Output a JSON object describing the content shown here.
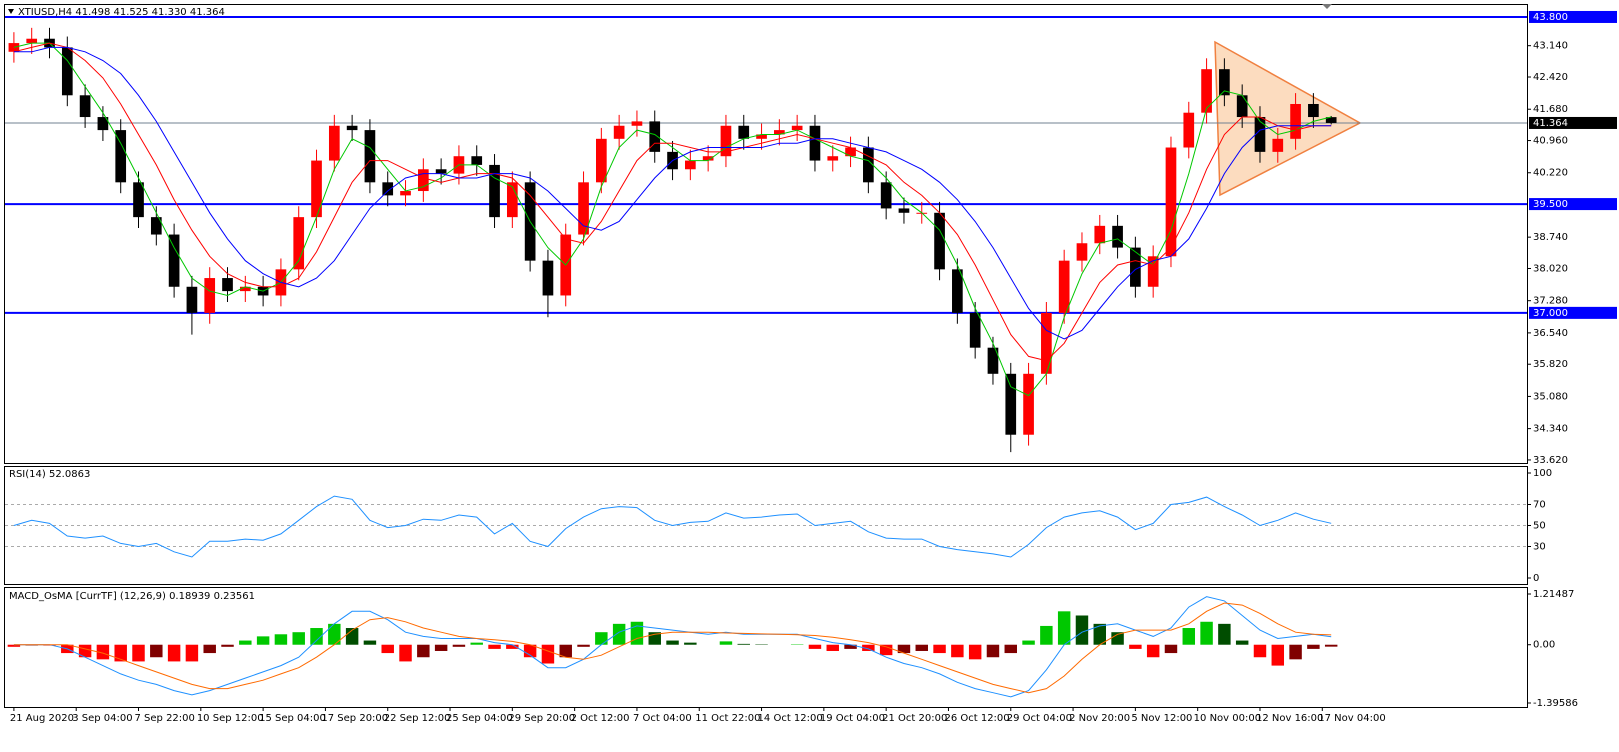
{
  "chart_data": [
    {
      "type": "candlestick",
      "title": "XTIUSD,H4  41.498 41.525 41.330 41.364",
      "xlim": [
        -0.5,
        85
      ],
      "open": [
        43.0,
        43.2,
        43.3,
        43.1,
        42.0,
        41.5,
        41.2,
        40.0,
        39.2,
        38.8,
        37.6,
        37.0,
        37.8,
        37.5,
        37.6,
        37.4,
        38.0,
        39.2,
        40.5,
        41.3,
        41.2,
        40.0,
        39.7,
        39.8,
        40.3,
        40.2,
        40.6,
        40.4,
        39.2,
        40.0,
        38.2,
        37.4,
        38.8,
        40.0,
        41.0,
        41.3,
        41.4,
        40.7,
        40.3,
        40.5,
        40.6,
        41.3,
        41.0,
        41.1,
        41.2,
        41.3,
        40.5,
        40.6,
        40.8,
        40.0,
        39.4,
        39.3,
        39.3,
        38.0,
        37.0,
        36.2,
        35.6,
        34.2,
        35.6,
        37.0,
        38.2,
        38.6,
        39.0,
        38.5,
        37.6,
        38.3,
        40.8,
        41.6,
        42.6,
        42.0,
        41.5,
        40.7,
        41.0,
        41.8,
        41.498
      ],
      "high": [
        43.45,
        43.55,
        43.55,
        43.35,
        42.25,
        41.75,
        41.45,
        40.25,
        39.45,
        39.05,
        37.85,
        38.05,
        38.05,
        37.85,
        37.85,
        38.25,
        39.45,
        40.75,
        41.55,
        41.55,
        41.45,
        40.25,
        40.05,
        40.55,
        40.55,
        40.85,
        40.85,
        40.65,
        40.25,
        40.25,
        38.45,
        39.05,
        40.25,
        41.25,
        41.55,
        41.65,
        41.65,
        40.95,
        40.75,
        40.85,
        41.55,
        41.55,
        41.35,
        41.45,
        41.55,
        41.55,
        40.85,
        41.05,
        41.05,
        40.25,
        39.65,
        39.55,
        39.55,
        38.25,
        37.25,
        36.45,
        35.85,
        35.85,
        37.25,
        38.45,
        38.85,
        39.25,
        39.25,
        38.75,
        38.55,
        41.05,
        41.85,
        42.85,
        42.85,
        42.25,
        41.75,
        41.25,
        42.05,
        42.05,
        41.525
      ],
      "low": [
        42.75,
        42.95,
        42.85,
        41.75,
        41.25,
        40.95,
        39.75,
        38.95,
        38.55,
        37.35,
        36.5,
        36.75,
        37.25,
        37.25,
        37.15,
        37.15,
        37.75,
        38.95,
        40.25,
        40.95,
        39.75,
        39.45,
        39.45,
        39.55,
        39.95,
        39.95,
        40.15,
        38.95,
        38.95,
        37.95,
        36.9,
        37.15,
        38.55,
        39.75,
        40.75,
        41.05,
        40.45,
        40.05,
        40.05,
        40.25,
        40.35,
        40.75,
        40.75,
        40.85,
        40.95,
        40.25,
        40.25,
        40.35,
        39.75,
        39.15,
        39.05,
        39.05,
        37.75,
        36.75,
        35.95,
        35.35,
        33.8,
        33.95,
        35.35,
        36.75,
        37.95,
        38.35,
        38.25,
        37.35,
        37.35,
        38.05,
        40.55,
        41.35,
        41.75,
        41.25,
        40.45,
        40.45,
        40.75,
        41.25,
        41.33
      ],
      "close": [
        43.2,
        43.3,
        43.1,
        42.0,
        41.5,
        41.2,
        40.0,
        39.2,
        38.8,
        37.6,
        37.0,
        37.8,
        37.5,
        37.6,
        37.4,
        38.0,
        39.2,
        40.5,
        41.3,
        41.2,
        40.0,
        39.7,
        39.8,
        40.3,
        40.2,
        40.6,
        40.4,
        39.2,
        40.0,
        38.2,
        37.4,
        38.8,
        40.0,
        41.0,
        41.3,
        41.4,
        40.7,
        40.3,
        40.5,
        40.6,
        41.3,
        41.0,
        41.1,
        41.2,
        41.3,
        40.5,
        40.6,
        40.8,
        40.0,
        39.4,
        39.3,
        39.3,
        38.0,
        37.0,
        36.2,
        35.6,
        34.2,
        35.6,
        37.0,
        38.2,
        38.6,
        39.0,
        38.5,
        37.6,
        38.3,
        40.8,
        41.6,
        42.6,
        42.0,
        41.5,
        40.7,
        41.0,
        41.8,
        41.5,
        41.364
      ],
      "up_color": "#ff0000",
      "down_color": "#000000",
      "series": [
        {
          "color": "#00c800",
          "values": [
            43.1,
            43.2,
            43.2,
            42.8,
            42.2,
            41.6,
            40.9,
            40.1,
            39.3,
            38.5,
            37.8,
            37.5,
            37.4,
            37.6,
            37.5,
            37.7,
            38.2,
            39.2,
            40.3,
            41.0,
            40.8,
            40.3,
            39.8,
            39.9,
            40.1,
            40.4,
            40.4,
            40.1,
            39.9,
            39.1,
            38.5,
            38.1,
            38.7,
            39.9,
            40.8,
            41.2,
            41.1,
            40.8,
            40.5,
            40.5,
            40.8,
            41.0,
            41.1,
            41.1,
            41.2,
            41.0,
            40.8,
            40.6,
            40.5,
            40.1,
            39.6,
            39.3,
            38.9,
            38.1,
            37.1,
            36.3,
            35.3,
            35.1,
            35.6,
            36.9,
            37.9,
            38.6,
            38.7,
            38.4,
            38.1,
            38.9,
            40.2,
            41.7,
            42.1,
            42.0,
            41.4,
            41.1,
            41.2,
            41.4,
            41.5
          ]
        },
        {
          "color": "#ff0000",
          "values": [
            43.0,
            43.1,
            43.2,
            43.1,
            42.8,
            42.4,
            41.8,
            41.1,
            40.4,
            39.6,
            38.9,
            38.3,
            37.9,
            37.7,
            37.6,
            37.6,
            37.8,
            38.4,
            39.2,
            40.0,
            40.5,
            40.5,
            40.3,
            40.1,
            40.0,
            40.1,
            40.2,
            40.2,
            40.1,
            39.7,
            39.2,
            38.7,
            38.6,
            39.1,
            39.8,
            40.5,
            40.9,
            40.9,
            40.8,
            40.7,
            40.7,
            40.8,
            40.9,
            41.0,
            41.1,
            41.0,
            40.9,
            40.8,
            40.6,
            40.4,
            40.0,
            39.7,
            39.3,
            38.8,
            38.1,
            37.3,
            36.5,
            36.0,
            35.9,
            36.3,
            37.0,
            37.7,
            38.1,
            38.2,
            38.1,
            38.5,
            39.3,
            40.3,
            41.1,
            41.5,
            41.5,
            41.3,
            41.2,
            41.3,
            41.3
          ]
        },
        {
          "color": "#0000ff",
          "values": [
            43.0,
            43.0,
            43.1,
            43.1,
            43.0,
            42.8,
            42.5,
            42.0,
            41.4,
            40.7,
            40.0,
            39.3,
            38.7,
            38.2,
            37.9,
            37.7,
            37.6,
            37.8,
            38.2,
            38.8,
            39.4,
            39.8,
            40.1,
            40.2,
            40.2,
            40.1,
            40.1,
            40.2,
            40.2,
            40.1,
            39.8,
            39.4,
            39.0,
            38.9,
            39.1,
            39.6,
            40.1,
            40.5,
            40.7,
            40.8,
            40.8,
            40.8,
            40.8,
            40.9,
            40.9,
            41.0,
            41.0,
            40.9,
            40.8,
            40.7,
            40.5,
            40.3,
            40.0,
            39.6,
            39.1,
            38.5,
            37.8,
            37.1,
            36.6,
            36.4,
            36.6,
            37.1,
            37.6,
            38.0,
            38.2,
            38.3,
            38.7,
            39.4,
            40.2,
            40.8,
            41.2,
            41.3,
            41.3,
            41.3,
            41.3
          ]
        }
      ],
      "ylim": [
        33.55,
        43.96
      ],
      "yticks": [
        {
          "value": 43.14,
          "label": "43.140"
        },
        {
          "value": 42.42,
          "label": "42.420"
        },
        {
          "value": 41.68,
          "label": "41.680"
        },
        {
          "value": 40.96,
          "label": "40.960"
        },
        {
          "value": 40.22,
          "label": "40.220"
        },
        {
          "value": 38.74,
          "label": "38.740"
        },
        {
          "value": 38.02,
          "label": "38.020"
        },
        {
          "value": 37.28,
          "label": "37.280"
        },
        {
          "value": 36.54,
          "label": "36.540"
        },
        {
          "value": 35.82,
          "label": "35.820"
        },
        {
          "value": 35.08,
          "label": "35.080"
        },
        {
          "value": 34.34,
          "label": "34.340"
        },
        {
          "value": 33.62,
          "label": "33.620"
        }
      ],
      "levels": [
        {
          "value": 43.8,
          "label": "43.800"
        },
        {
          "value": 39.5,
          "label": "39.500"
        },
        {
          "value": 37.0,
          "label": "37.000"
        }
      ],
      "level_color": "#0000ff",
      "last_price": {
        "value": 41.364,
        "label": "41.364"
      }
    },
    {
      "type": "line",
      "title": "RSI(14) 52.0863",
      "xlim": [
        -0.5,
        85
      ],
      "series": [
        {
          "color": "#1e90ff",
          "values": [
            50,
            55,
            52,
            40,
            38,
            40,
            33,
            30,
            33,
            25,
            20,
            35,
            35,
            37,
            36,
            42,
            55,
            68,
            78,
            75,
            55,
            48,
            50,
            56,
            55,
            60,
            58,
            42,
            52,
            35,
            30,
            47,
            58,
            66,
            68,
            67,
            55,
            50,
            53,
            54,
            62,
            57,
            58,
            60,
            61,
            50,
            52,
            54,
            44,
            38,
            37,
            37,
            30,
            27,
            25,
            23,
            20,
            32,
            48,
            58,
            62,
            64,
            58,
            46,
            52,
            70,
            72,
            77,
            68,
            60,
            50,
            55,
            62,
            56,
            52.0863
          ]
        }
      ],
      "ylim": [
        0,
        100
      ],
      "yticks": [
        100,
        70,
        50,
        30,
        0
      ]
    },
    {
      "type": "osma",
      "title": "MACD_OsMA [CurrTF] (12,26,9) 0.18939 0.23561",
      "xlim": [
        -0.5,
        85
      ],
      "values": [
        -0.05,
        -0.02,
        -0.02,
        -0.2,
        -0.3,
        -0.35,
        -0.4,
        -0.4,
        -0.3,
        -0.4,
        -0.4,
        -0.2,
        -0.05,
        0.1,
        0.2,
        0.25,
        0.3,
        0.4,
        0.5,
        0.4,
        0.1,
        -0.2,
        -0.4,
        -0.3,
        -0.15,
        -0.05,
        0.05,
        -0.1,
        -0.1,
        -0.3,
        -0.45,
        -0.3,
        -0.05,
        0.3,
        0.5,
        0.55,
        0.3,
        0.1,
        0.05,
        0.0,
        0.08,
        0.02,
        0.01,
        0.0,
        0.01,
        -0.1,
        -0.15,
        -0.1,
        -0.15,
        -0.25,
        -0.2,
        -0.15,
        -0.2,
        -0.3,
        -0.35,
        -0.3,
        -0.2,
        0.1,
        0.45,
        0.8,
        0.7,
        0.5,
        0.3,
        -0.1,
        -0.3,
        -0.2,
        0.4,
        0.55,
        0.5,
        0.1,
        -0.3,
        -0.5,
        -0.35,
        -0.1,
        -0.04622
      ],
      "bar_colors": {
        "up_positive": "#00c800",
        "down_positive": "#004d00",
        "down_negative": "#ff0000",
        "up_negative": "#800000"
      },
      "series": [
        {
          "color": "#1e90ff",
          "values": [
            0.0,
            0.0,
            0.0,
            -0.1,
            -0.3,
            -0.5,
            -0.7,
            -0.85,
            -0.95,
            -1.1,
            -1.2,
            -1.1,
            -0.95,
            -0.8,
            -0.65,
            -0.5,
            -0.3,
            0.1,
            0.5,
            0.8,
            0.8,
            0.6,
            0.3,
            0.2,
            0.15,
            0.15,
            0.15,
            0.05,
            0.0,
            -0.25,
            -0.55,
            -0.55,
            -0.35,
            0.0,
            0.3,
            0.45,
            0.4,
            0.35,
            0.3,
            0.25,
            0.3,
            0.25,
            0.25,
            0.25,
            0.25,
            0.15,
            0.05,
            0.0,
            -0.1,
            -0.3,
            -0.45,
            -0.55,
            -0.7,
            -0.9,
            -1.05,
            -1.15,
            -1.25,
            -1.1,
            -0.6,
            0.0,
            0.3,
            0.45,
            0.5,
            0.35,
            0.2,
            0.4,
            0.9,
            1.15,
            1.05,
            0.7,
            0.35,
            0.15,
            0.2,
            0.25,
            0.18939
          ]
        },
        {
          "color": "#ff6a00",
          "values": [
            0.0,
            0.0,
            0.0,
            0.0,
            -0.1,
            -0.2,
            -0.35,
            -0.5,
            -0.65,
            -0.8,
            -0.95,
            -1.05,
            -1.05,
            -0.95,
            -0.85,
            -0.7,
            -0.55,
            -0.3,
            0.0,
            0.35,
            0.6,
            0.65,
            0.55,
            0.4,
            0.3,
            0.2,
            0.15,
            0.12,
            0.08,
            0.0,
            -0.15,
            -0.3,
            -0.35,
            -0.25,
            -0.05,
            0.15,
            0.25,
            0.3,
            0.3,
            0.3,
            0.28,
            0.27,
            0.26,
            0.25,
            0.24,
            0.22,
            0.18,
            0.12,
            0.05,
            -0.05,
            -0.2,
            -0.35,
            -0.5,
            -0.65,
            -0.8,
            -0.95,
            -1.05,
            -1.15,
            -1.05,
            -0.75,
            -0.35,
            0.0,
            0.25,
            0.35,
            0.35,
            0.35,
            0.5,
            0.8,
            1.0,
            0.95,
            0.75,
            0.5,
            0.3,
            0.25,
            0.23561
          ]
        }
      ],
      "ylim": [
        -1.39586,
        1.21487
      ],
      "yticks": [
        1.21487,
        {
          "value": 0,
          "label": "0.00"
        },
        -1.39586
      ],
      "xticks": [
        {
          "value": 0,
          "label": "21 Aug 2020"
        },
        {
          "value": 3.5,
          "label": "3 Sep 04:00"
        },
        {
          "value": 7,
          "label": "7 Sep 22:00"
        },
        {
          "value": 10.5,
          "label": "10 Sep 12:00"
        },
        {
          "value": 14,
          "label": "15 Sep 04:00"
        },
        {
          "value": 17.5,
          "label": "17 Sep 20:00"
        },
        {
          "value": 21,
          "label": "22 Sep 12:00"
        },
        {
          "value": 24.5,
          "label": "25 Sep 04:00"
        },
        {
          "value": 28,
          "label": "29 Sep 20:00"
        },
        {
          "value": 31.5,
          "label": "2 Oct 12:00"
        },
        {
          "value": 35,
          "label": "7 Oct 04:00"
        },
        {
          "value": 38.5,
          "label": "11 Oct 22:00"
        },
        {
          "value": 42,
          "label": "14 Oct 12:00"
        },
        {
          "value": 45.5,
          "label": "19 Oct 04:00"
        },
        {
          "value": 49,
          "label": "21 Oct 20:00"
        },
        {
          "value": 52.5,
          "label": "26 Oct 12:00"
        },
        {
          "value": 56,
          "label": "29 Oct 04:00"
        },
        {
          "value": 59.5,
          "label": "2 Nov 20:00"
        },
        {
          "value": 63,
          "label": "5 Nov 12:00"
        },
        {
          "value": 66.5,
          "label": "10 Nov 00:00"
        },
        {
          "value": 70,
          "label": "12 Nov 16:00"
        },
        {
          "value": 73.5,
          "label": "17 Nov 04:00"
        }
      ]
    }
  ]
}
